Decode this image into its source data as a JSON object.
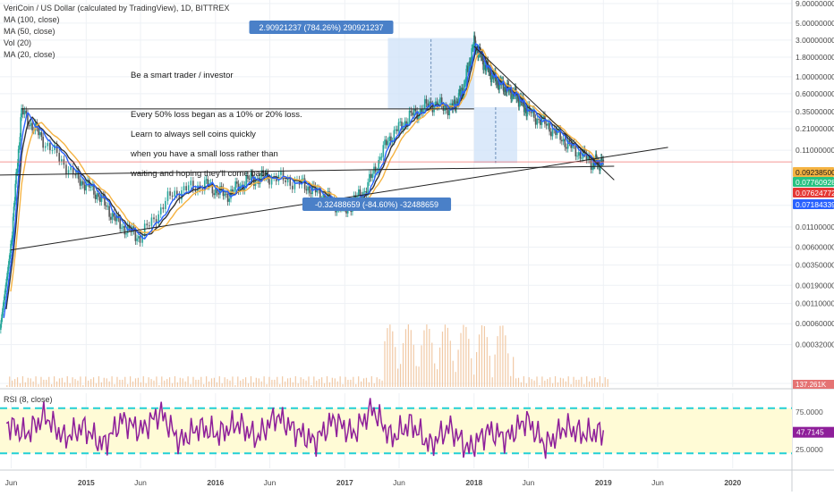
{
  "legend": {
    "title": "VeriCoin / US Dollar (calculated by TradingView), 1D, BITTREX",
    "ma100": "MA (100, close)",
    "ma50": "MA (50, close)",
    "vol": "Vol (20)",
    "ma20": "MA (20, close)"
  },
  "annotation": {
    "line1": "Be a smart trader / investor",
    "line2": "Every 50% loss began as a 10% or 20% loss.",
    "line3": "Learn to always sell coins quickly",
    "line4": "when you have a small loss rather than",
    "line5": "waiting and hoping they'll come back."
  },
  "rsi_label": "RSI (8, close)",
  "colors": {
    "price_candle_up": "#26a69a",
    "price_candle_down": "#555555",
    "ma20": "#2962ff",
    "ma50": "#f5b342",
    "ma100": "#333333",
    "rsi_line": "#8e1f9a",
    "rsi_band": "#fffbd6",
    "rsi_levels": "#22d0d6",
    "measure_fill": "#cfe2f8",
    "measure_label": "#4a80c8",
    "current_price_line": "#ef5350",
    "trendline": "#222222"
  },
  "measure_up": {
    "label": "2.90921237 (784.26%) 290921237"
  },
  "measure_down": {
    "label": "-0.32488659 (-84.60%) -32488659"
  },
  "price_badges": [
    {
      "label": "0.09238500",
      "color": "#f5b342",
      "text_color": "#1a1a1a"
    },
    {
      "label": "0.07760928",
      "color": "#26c281",
      "text_color": "#ffffff"
    },
    {
      "label": "0.07624772",
      "color": "#e53935",
      "text_color": "#ffffff"
    },
    {
      "label": "0.07184339",
      "color": "#2962ff",
      "text_color": "#ffffff"
    }
  ],
  "volume_badge": "137.261K",
  "rsi_badge": "47.7145",
  "chart_data": {
    "type": "line",
    "title": "VeriCoin / US Dollar (calculated by TradingView), 1D, BITTREX",
    "y_scale": "log",
    "price_axis_ticks": [
      "9.00000000",
      "5.00000000",
      "3.00000000",
      "1.80000000",
      "1.00000000",
      "0.60000000",
      "0.35000000",
      "0.21000000",
      "0.11000000",
      "0.02100000",
      "0.01100000",
      "0.00600000",
      "0.00350000",
      "0.00190000",
      "0.00110000",
      "0.00060000",
      "0.00032000",
      "0.00010000"
    ],
    "rsi_axis_ticks": [
      "75.0000",
      "25.0000"
    ],
    "rsi_levels": [
      80,
      20
    ],
    "x_axis_ticks": [
      "Jun",
      "2015",
      "Jun",
      "2016",
      "Jun",
      "2017",
      "Jun",
      "2018",
      "Jun",
      "2019",
      "Jun",
      "2020"
    ],
    "x_range": [
      "2014-05",
      "2020-06"
    ],
    "series": [
      {
        "name": "",
        "x": [
          "2014-05",
          "2014-06",
          "2014-07",
          "2014-09",
          "2014-12",
          "2015-02",
          "2015-04",
          "2015-06",
          "2015-09",
          "2015-12",
          "2016-02",
          "2016-04",
          "2016-06",
          "2016-09",
          "2016-11",
          "2017-01",
          "2017-03",
          "2017-05",
          "2017-07",
          "2017-09",
          "2017-11",
          "2017-12",
          "2018-01",
          "2018-02",
          "2018-03",
          "2018-04",
          "2018-05",
          "2018-06",
          "2018-08",
          "2018-10",
          "2018-12",
          "2019-01"
        ],
        "values": [
          0.0005,
          0.006,
          0.35,
          0.15,
          0.05,
          0.03,
          0.012,
          0.008,
          0.03,
          0.04,
          0.028,
          0.045,
          0.05,
          0.04,
          0.028,
          0.018,
          0.035,
          0.15,
          0.3,
          0.45,
          0.38,
          0.7,
          2.8,
          1.4,
          0.9,
          0.7,
          0.55,
          0.35,
          0.22,
          0.12,
          0.075,
          0.078
        ]
      }
    ],
    "rsi_values": [
      60,
      45,
      70,
      40,
      55,
      30,
      65,
      50,
      75,
      35,
      55,
      45,
      60,
      40,
      70,
      50,
      35,
      65,
      45,
      80,
      40,
      60,
      30,
      55,
      25,
      50,
      40,
      65,
      30,
      55,
      45,
      48
    ]
  }
}
